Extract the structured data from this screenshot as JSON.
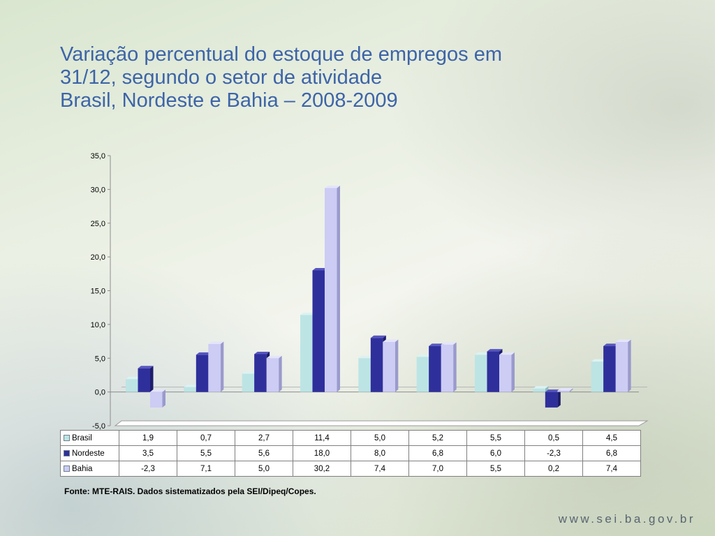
{
  "slide": {
    "title_lines": [
      "Variação percentual do estoque de empregos em",
      "31/12, segundo o setor de atividade",
      "Brasil, Nordeste e Bahia – 2008-2009"
    ],
    "source": "Fonte: MTE-RAIS. Dados sistematizados pela SEI/Dipeq/Copes.",
    "website": "www.sei.ba.gov.br"
  },
  "chart_data": {
    "type": "bar",
    "categories": [
      "",
      "",
      "",
      "",
      "",
      "",
      "",
      "",
      ""
    ],
    "series": [
      {
        "name": "Brasil",
        "color": "#bde4e4",
        "side": "#8fbcbc",
        "top": "#dcf2f2",
        "values": [
          1.9,
          0.7,
          2.7,
          11.4,
          5.0,
          5.2,
          5.5,
          0.5,
          4.5
        ],
        "table_values": [
          "1,9",
          "0,7",
          "2,7",
          "11,4",
          "5,0",
          "5,2",
          "5,5",
          "0,5",
          "4,5"
        ]
      },
      {
        "name": "Nordeste",
        "color": "#2f2f9c",
        "side": "#1c1c6a",
        "top": "#5656c0",
        "values": [
          3.5,
          5.5,
          5.6,
          18.0,
          8.0,
          6.8,
          6.0,
          -2.3,
          6.8
        ],
        "table_values": [
          "3,5",
          "5,5",
          "5,6",
          "18,0",
          "8,0",
          "6,8",
          "6,0",
          "-2,3",
          "6,8"
        ]
      },
      {
        "name": "Bahia",
        "color": "#ccccf4",
        "side": "#9a9acc",
        "top": "#e4e4fb",
        "values": [
          -2.3,
          7.1,
          5.0,
          30.2,
          7.4,
          7.0,
          5.5,
          0.2,
          7.4
        ],
        "table_values": [
          "-2,3",
          "7,1",
          "5,0",
          "30,2",
          "7,4",
          "7,0",
          "5,5",
          "0,2",
          "7,4"
        ]
      }
    ],
    "ylim": [
      -5,
      35
    ],
    "yticks": [
      -5,
      0,
      5,
      10,
      15,
      20,
      25,
      30,
      35
    ],
    "ytick_labels": [
      "-5,0",
      "0,0",
      "5,0",
      "10,0",
      "15,0",
      "20,0",
      "25,0",
      "30,0",
      "35,0"
    ],
    "grid": false,
    "legend": "data-table-below",
    "three_d": true
  }
}
